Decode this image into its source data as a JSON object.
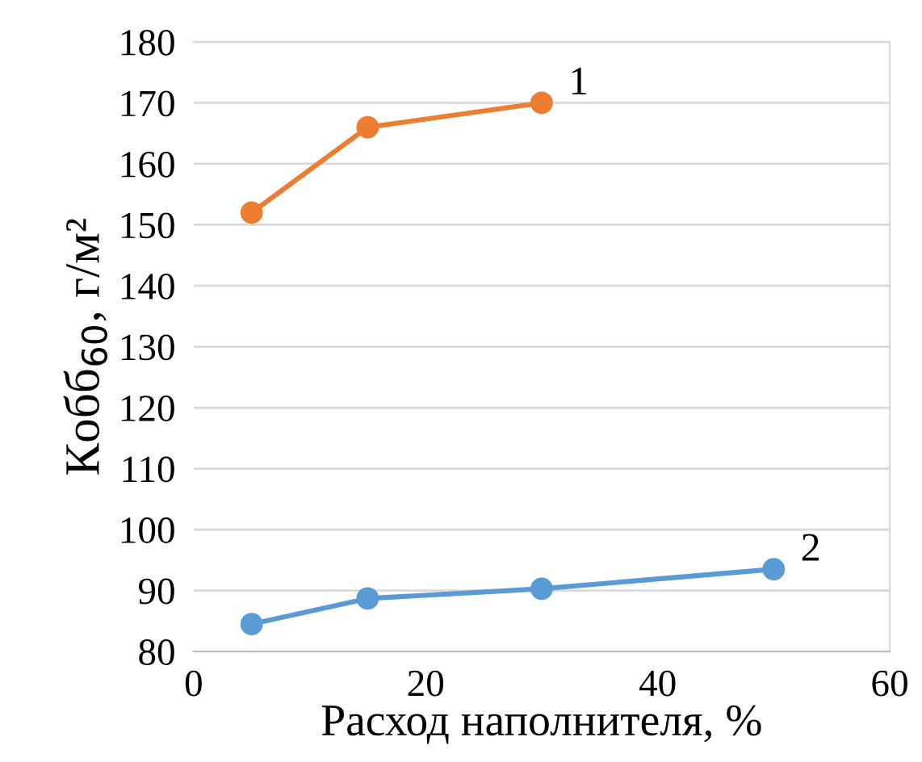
{
  "chart_data": {
    "type": "line",
    "xlabel": "Расход наполнителя, %",
    "ylabel": "Кобб$_{60}$, г/м²",
    "series": [
      {
        "name": "1",
        "color": "#ed7d31",
        "x": [
          5,
          15,
          30
        ],
        "values": [
          152,
          166,
          170
        ]
      },
      {
        "name": "2",
        "color": "#5b9bd5",
        "x": [
          5,
          15,
          30,
          50
        ],
        "values": [
          84.5,
          88.7,
          90.3,
          93.5
        ]
      }
    ],
    "xlim": [
      0,
      60
    ],
    "xticks": [
      0,
      20,
      40,
      60
    ],
    "ylim": [
      80,
      180
    ],
    "yticks": [
      80,
      90,
      100,
      110,
      120,
      130,
      140,
      150,
      160,
      170,
      180
    ],
    "grid": "y",
    "marker": "circle",
    "line_style": "solid"
  }
}
